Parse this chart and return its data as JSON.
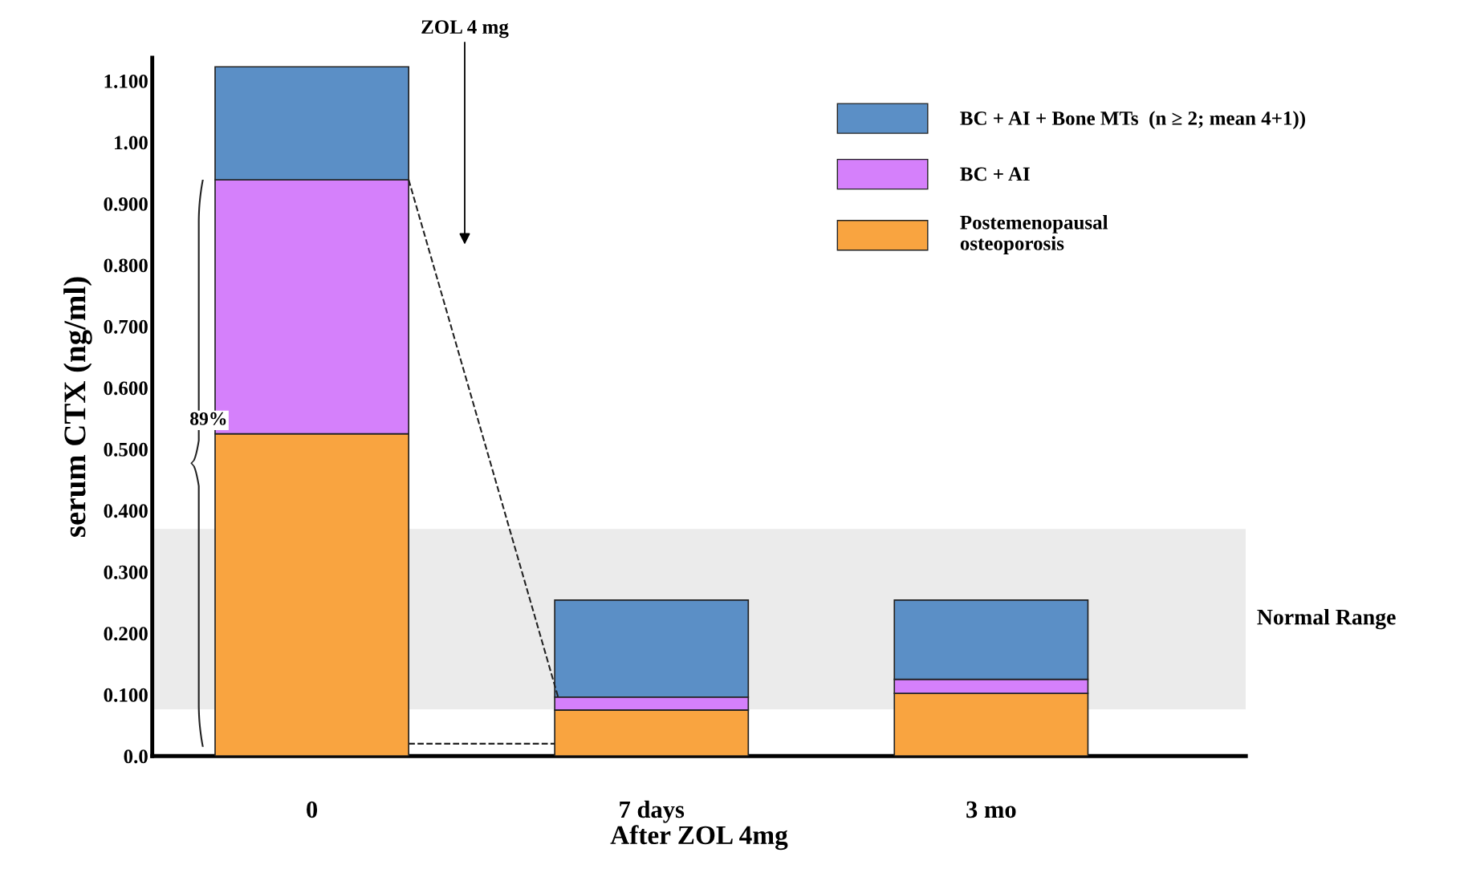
{
  "chart_data": {
    "type": "bar",
    "stacked": true,
    "ylabel": "serum CTX (ng/ml)",
    "xlabel": "After ZOL 4mg",
    "categories": [
      "0",
      "7 days",
      "3 mo"
    ],
    "series": [
      {
        "name": "Postemenopausal\nosteoporosis",
        "color": "#f9a440",
        "values": [
          0.525,
          0.075,
          0.102
        ]
      },
      {
        "name": "BC + AI",
        "color": "#d580fb",
        "values": [
          0.414,
          0.021,
          0.023
        ]
      },
      {
        "name": "BC + AI + Bone MTs  (n ≥ 2; mean 4+1))",
        "color": "#5b8fc6",
        "values": [
          0.184,
          0.158,
          0.129
        ]
      }
    ],
    "ylim": [
      0,
      1.138
    ],
    "yticks": [
      {
        "value": 0,
        "label": "0.0"
      },
      {
        "value": 0.1,
        "label": "0.100"
      },
      {
        "value": 0.2,
        "label": "0.200"
      },
      {
        "value": 0.3,
        "label": "0.300"
      },
      {
        "value": 0.4,
        "label": "0.400"
      },
      {
        "value": 0.5,
        "label": "0.500"
      },
      {
        "value": 0.6,
        "label": "0.600"
      },
      {
        "value": 0.7,
        "label": "0.700"
      },
      {
        "value": 0.8,
        "label": "0.800"
      },
      {
        "value": 0.9,
        "label": "0.900"
      },
      {
        "value": 1.0,
        "label": "1.00"
      },
      {
        "value": 1.1,
        "label": "1.100"
      }
    ],
    "bands": [
      {
        "axis": "y",
        "from": 0.076,
        "to": 0.37,
        "label": "Normal Range",
        "color": "#ebebeb"
      }
    ],
    "annotations": [
      "ZOL 4 mg",
      "89%"
    ],
    "legend": "top right",
    "grid": false
  }
}
